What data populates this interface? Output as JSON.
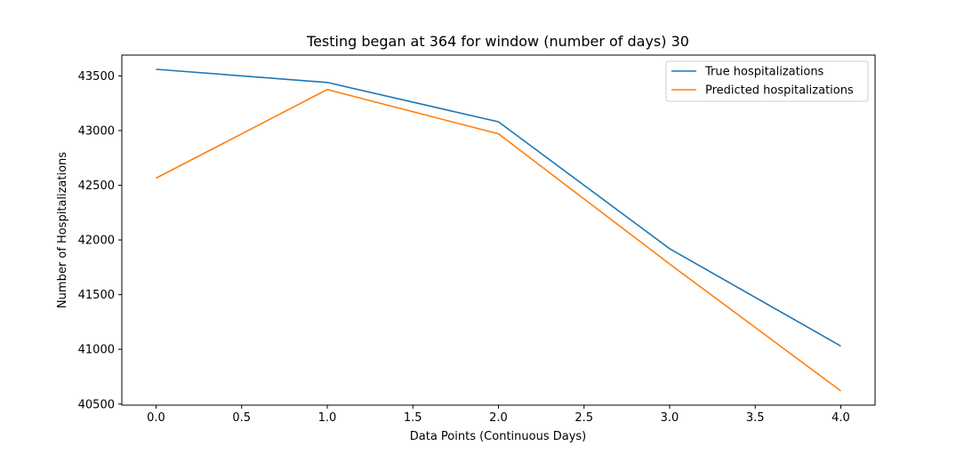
{
  "chart_data": {
    "type": "line",
    "title": "Testing began at 364 for window (number of days) 30",
    "xlabel": "Data Points (Continuous Days)",
    "ylabel": "Number of Hospitalizations",
    "x": [
      0,
      1,
      2,
      3,
      4
    ],
    "xlim": [
      -0.2,
      4.2
    ],
    "ylim": [
      40490,
      43690
    ],
    "xticks": [
      "0.0",
      "0.5",
      "1.0",
      "1.5",
      "2.0",
      "2.5",
      "3.0",
      "3.5",
      "4.0"
    ],
    "xtick_values": [
      0,
      0.5,
      1,
      1.5,
      2,
      2.5,
      3,
      3.5,
      4
    ],
    "yticks": [
      "40500",
      "41000",
      "41500",
      "42000",
      "42500",
      "43000",
      "43500"
    ],
    "ytick_values": [
      40500,
      41000,
      41500,
      42000,
      42500,
      43000,
      43500
    ],
    "grid": false,
    "legend_position": "top-right",
    "series": [
      {
        "name": "True hospitalizations",
        "color": "#1f77b4",
        "values": [
          43560,
          43440,
          43080,
          41920,
          41030
        ]
      },
      {
        "name": "Predicted hospitalizations",
        "color": "#ff7f0e",
        "values": [
          42565,
          43375,
          42970,
          41780,
          40620
        ]
      }
    ]
  }
}
